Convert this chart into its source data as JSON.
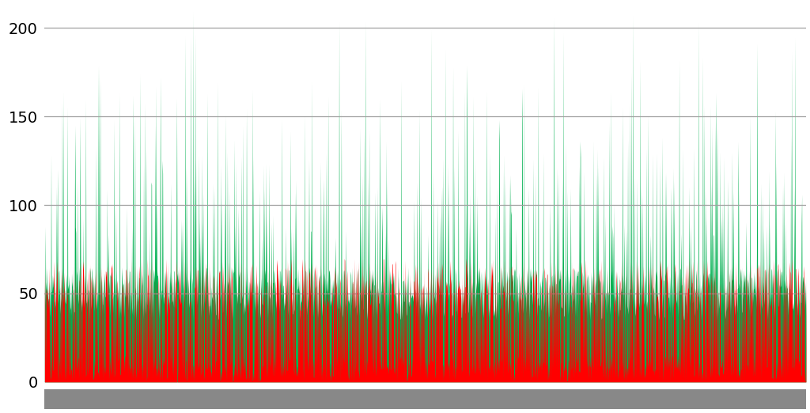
{
  "title": "",
  "ylim": [
    0,
    210
  ],
  "yticks": [
    0,
    50,
    100,
    150,
    200
  ],
  "n_points": 2000,
  "green_color": "#00b050",
  "red_color": "#ff0000",
  "bg_color": "#ffffff",
  "grid_color": "#a0a0a0",
  "bottom_bar_color": "#888888",
  "seed": 123,
  "figsize": [
    10.24,
    5.22
  ],
  "dpi": 100
}
